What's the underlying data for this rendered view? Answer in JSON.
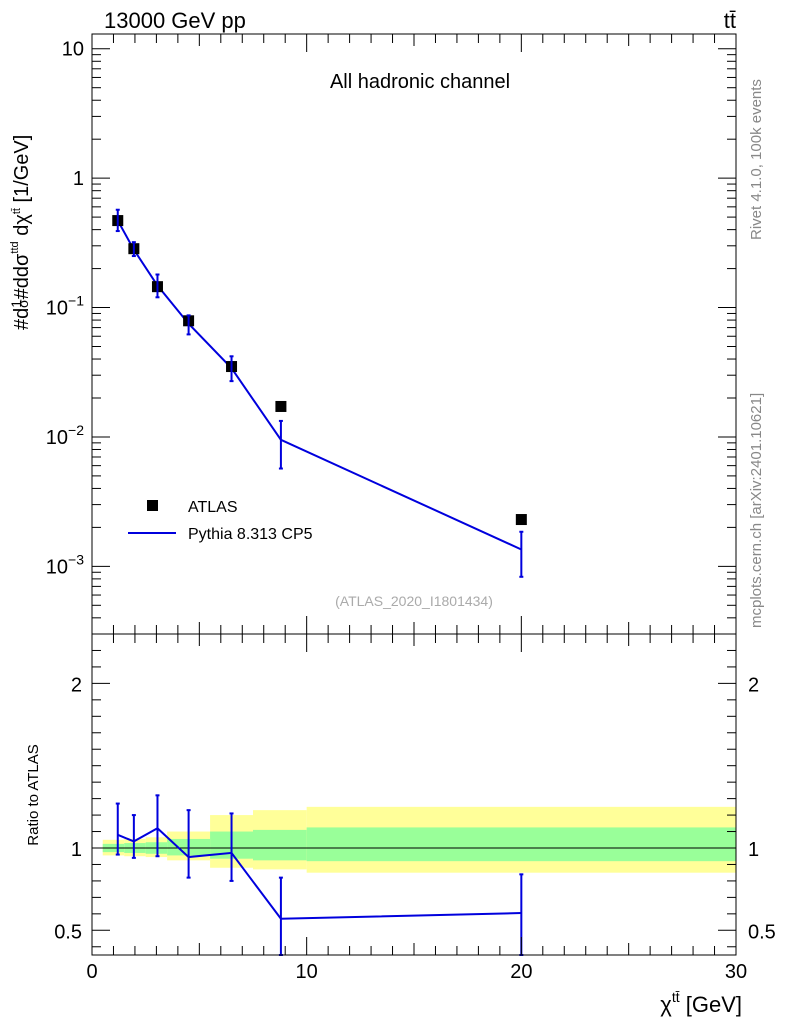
{
  "header": {
    "left": "13000 GeV pp",
    "right": "tt̄"
  },
  "side_labels": {
    "rivet": "Rivet 4.1.0,  100k events",
    "mcplots": "mcplots.cern.ch [arXiv:2401.10621]"
  },
  "chart_data": [
    {
      "type": "line",
      "panel": "main",
      "title": "All hadronic channel",
      "ylabel": "#d1/σ#ddσ^ttd/dχ^tt̄ [1/GeV]",
      "yscale": "log",
      "ylim": [
        0.0003,
        13
      ],
      "xlim": [
        0,
        30
      ],
      "y_ticks": [
        {
          "value": 0.001,
          "base": "10",
          "exp": "−3"
        },
        {
          "value": 0.01,
          "base": "10",
          "exp": "−2"
        },
        {
          "value": 0.1,
          "base": "10",
          "exp": "−1"
        },
        {
          "value": 1,
          "base": "1",
          "exp": ""
        },
        {
          "value": 10,
          "base": "10",
          "exp": ""
        }
      ],
      "annotation": "(ATLAS_2020_I1801434)",
      "legend": {
        "position": "bottom-left",
        "entries": [
          "ATLAS",
          "Pythia 8.313 CP5"
        ]
      },
      "series": [
        {
          "name": "ATLAS",
          "marker": "square",
          "x": [
            1.2,
            1.95,
            3.05,
            4.5,
            6.5,
            8.8,
            20.0
          ],
          "y": [
            0.47,
            0.285,
            0.145,
            0.079,
            0.035,
            0.0172,
            0.0023
          ]
        },
        {
          "name": "Pythia 8.313 CP5",
          "color": "#0000dd",
          "x": [
            1.2,
            1.95,
            3.05,
            4.5,
            6.5,
            8.8,
            20.0
          ],
          "y": [
            0.47,
            0.28,
            0.148,
            0.075,
            0.034,
            0.0095,
            0.00135
          ],
          "err_low": [
            0.39,
            0.25,
            0.12,
            0.062,
            0.027,
            0.0057,
            0.00083
          ],
          "err_high": [
            0.57,
            0.32,
            0.18,
            0.087,
            0.042,
            0.0133,
            0.00185
          ]
        }
      ]
    },
    {
      "type": "line",
      "panel": "ratio",
      "ylabel": "Ratio to ATLAS",
      "xlabel_base": "χ",
      "xlabel_sup": "tt̄",
      "xlabel_unit": " [GeV]",
      "ylim": [
        0.35,
        2.3
      ],
      "xlim": [
        0,
        30
      ],
      "y_ticks": [
        0.5,
        1,
        2
      ],
      "y_tick_labels": [
        "0.5",
        "1",
        "2"
      ],
      "x_ticks": [
        0,
        10,
        20,
        30
      ],
      "x_tick_labels": [
        "0",
        "10",
        "20",
        "30"
      ],
      "bands": [
        {
          "x_edges": [
            0.5,
            1.5,
            2.5,
            3.5,
            5.5,
            7.5,
            10.0,
            30.0
          ],
          "yellow_low": [
            0.955,
            0.95,
            0.945,
            0.925,
            0.88,
            0.87,
            0.85
          ],
          "yellow_high": [
            1.05,
            1.055,
            1.065,
            1.1,
            1.2,
            1.23,
            1.25
          ],
          "green_low": [
            0.975,
            0.97,
            0.965,
            0.955,
            0.935,
            0.925,
            0.92
          ],
          "green_high": [
            1.025,
            1.03,
            1.035,
            1.055,
            1.1,
            1.11,
            1.125
          ]
        }
      ],
      "series": [
        {
          "name": "Pythia 8.313 CP5",
          "color": "#0000dd",
          "x": [
            1.2,
            1.95,
            3.05,
            4.5,
            6.5,
            8.8,
            20.0
          ],
          "y": [
            1.08,
            1.04,
            1.12,
            0.945,
            0.97,
            0.57,
            0.605
          ],
          "err_low": [
            0.96,
            0.94,
            0.95,
            0.82,
            0.8,
            0.35,
            0.35
          ],
          "err_high": [
            1.27,
            1.2,
            1.32,
            1.23,
            1.21,
            0.82,
            0.84
          ]
        }
      ]
    }
  ]
}
